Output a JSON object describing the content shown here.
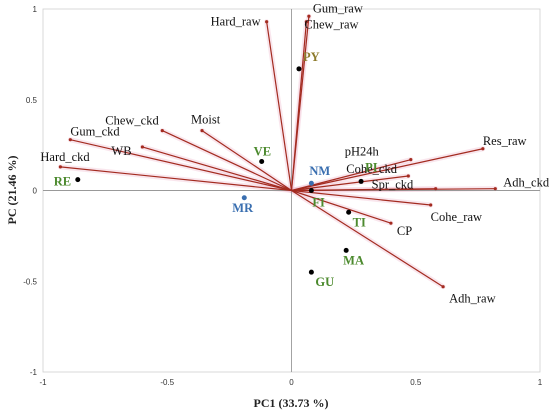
{
  "chart_data": {
    "type": "scatter",
    "subtype": "biplot",
    "xlabel": "PC1 (33.73 %)",
    "ylabel": "PC (21.46 %)",
    "xlim": [
      -1,
      1
    ],
    "ylim": [
      -1,
      1
    ],
    "xticks": [
      "-1",
      "-0.5",
      "0",
      "0.5",
      "1"
    ],
    "yticks": [
      "1",
      "0.5",
      "0",
      "-0.5",
      "-1"
    ],
    "grid": false,
    "loadings": [
      {
        "label": "Gum_raw",
        "x": 0.07,
        "y": 0.96
      },
      {
        "label": "Chew_raw",
        "x": 0.06,
        "y": 0.93
      },
      {
        "label": "Hard_raw",
        "x": -0.1,
        "y": 0.93
      },
      {
        "label": "Res_raw",
        "x": 0.77,
        "y": 0.23
      },
      {
        "label": "pH24h",
        "x": 0.48,
        "y": 0.17
      },
      {
        "label": "Cohe_ckd",
        "x": 0.47,
        "y": 0.08
      },
      {
        "label": "Spr_ckd",
        "x": 0.58,
        "y": 0.01
      },
      {
        "label": "Adh_ckd",
        "x": 0.82,
        "y": 0.01
      },
      {
        "label": "Cohe_raw",
        "x": 0.56,
        "y": -0.08
      },
      {
        "label": "CP",
        "x": 0.4,
        "y": -0.18
      },
      {
        "label": "Adh_raw",
        "x": 0.61,
        "y": -0.53
      },
      {
        "label": "Moist",
        "x": -0.36,
        "y": 0.33
      },
      {
        "label": "Chew_ckd",
        "x": -0.52,
        "y": 0.33
      },
      {
        "label": "WB",
        "x": -0.6,
        "y": 0.24
      },
      {
        "label": "Gum_ckd",
        "x": -0.89,
        "y": 0.28
      },
      {
        "label": "Hard_ckd",
        "x": -0.93,
        "y": 0.13
      }
    ],
    "scores": [
      {
        "label": "PY",
        "x": 0.03,
        "y": 0.67,
        "color": "#8c7a2a",
        "marker_color": "#000000"
      },
      {
        "label": "VE",
        "x": -0.12,
        "y": 0.16,
        "color": "#4c8a2e",
        "marker_color": "#000000"
      },
      {
        "label": "NM",
        "x": 0.08,
        "y": 0.04,
        "color": "#3a6fb0",
        "marker_color": "#3a6fb0"
      },
      {
        "label": "PI",
        "x": 0.28,
        "y": 0.05,
        "color": "#4c8a2e",
        "marker_color": "#000000"
      },
      {
        "label": "FI",
        "x": 0.08,
        "y": 0.0,
        "color": "#4c8a2e",
        "marker_color": "#000000"
      },
      {
        "label": "TI",
        "x": 0.23,
        "y": -0.12,
        "color": "#4c8a2e",
        "marker_color": "#000000"
      },
      {
        "label": "MA",
        "x": 0.22,
        "y": -0.33,
        "color": "#4c8a2e",
        "marker_color": "#000000"
      },
      {
        "label": "GU",
        "x": 0.08,
        "y": -0.45,
        "color": "#4c8a2e",
        "marker_color": "#000000"
      },
      {
        "label": "MR",
        "x": -0.19,
        "y": -0.04,
        "color": "#3a6fb0",
        "marker_color": "#3a6fb0"
      },
      {
        "label": "RE",
        "x": -0.86,
        "y": 0.06,
        "color": "#4c8a2e",
        "marker_color": "#000000"
      }
    ],
    "colors": {
      "vector": "#a32b20",
      "axis": "#888888"
    }
  }
}
